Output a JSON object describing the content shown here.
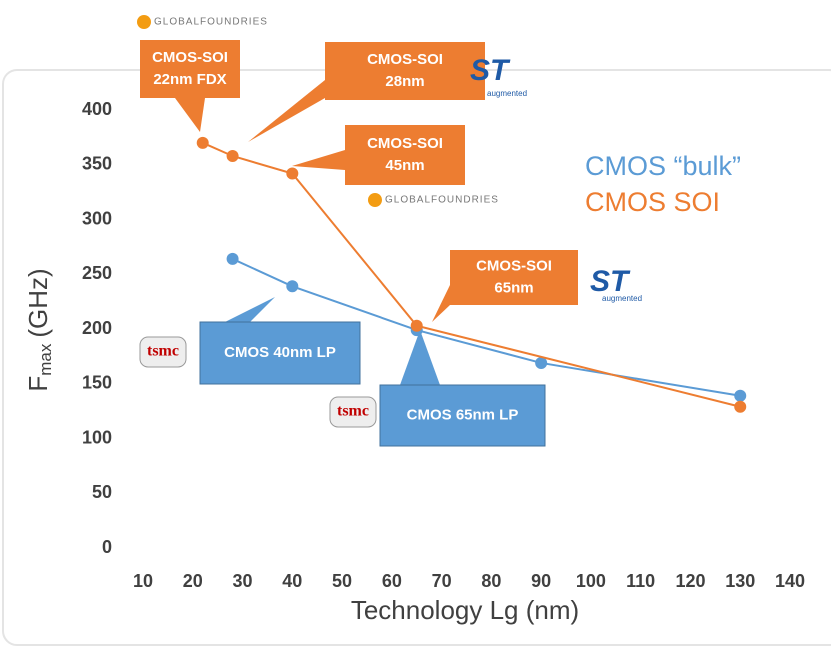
{
  "chart_data": {
    "type": "line",
    "xlabel": "Technology Lg (nm)",
    "ylabel": {
      "main": "F",
      "sub": "max",
      "unit": "(GHz)"
    },
    "xlim": [
      10,
      140
    ],
    "xticks": [
      10,
      20,
      30,
      40,
      50,
      60,
      70,
      80,
      90,
      100,
      110,
      120,
      130,
      140
    ],
    "ylim": [
      0,
      400
    ],
    "yticks": [
      0,
      50,
      100,
      150,
      200,
      250,
      300,
      350,
      400
    ],
    "series": [
      {
        "name": "CMOS “bulk”",
        "color": "#5b9bd5",
        "x": [
          28,
          40,
          65,
          90,
          130
        ],
        "values": [
          264,
          239,
          199,
          169,
          139
        ]
      },
      {
        "name": "CMOS SOI",
        "color": "#ed7d31",
        "x": [
          22,
          28,
          40,
          65,
          130
        ],
        "values": [
          370,
          358,
          342,
          203,
          129
        ]
      }
    ],
    "annotations": [
      {
        "lines": [
          "CMOS-SOI",
          "22nm FDX"
        ]
      },
      {
        "lines": [
          "CMOS-SOI",
          "28nm"
        ]
      },
      {
        "lines": [
          "CMOS-SOI",
          "45nm"
        ]
      },
      {
        "lines": [
          "CMOS-SOI",
          "65nm"
        ]
      },
      {
        "lines": [
          "CMOS 40nm LP"
        ]
      },
      {
        "lines": [
          "CMOS 65nm LP"
        ]
      }
    ],
    "logos": [
      "GLOBALFOUNDRIES",
      "ST",
      "augmented",
      "GLOBALFOUNDRIES",
      "ST",
      "augmented",
      "tsmc",
      "tsmc"
    ]
  }
}
